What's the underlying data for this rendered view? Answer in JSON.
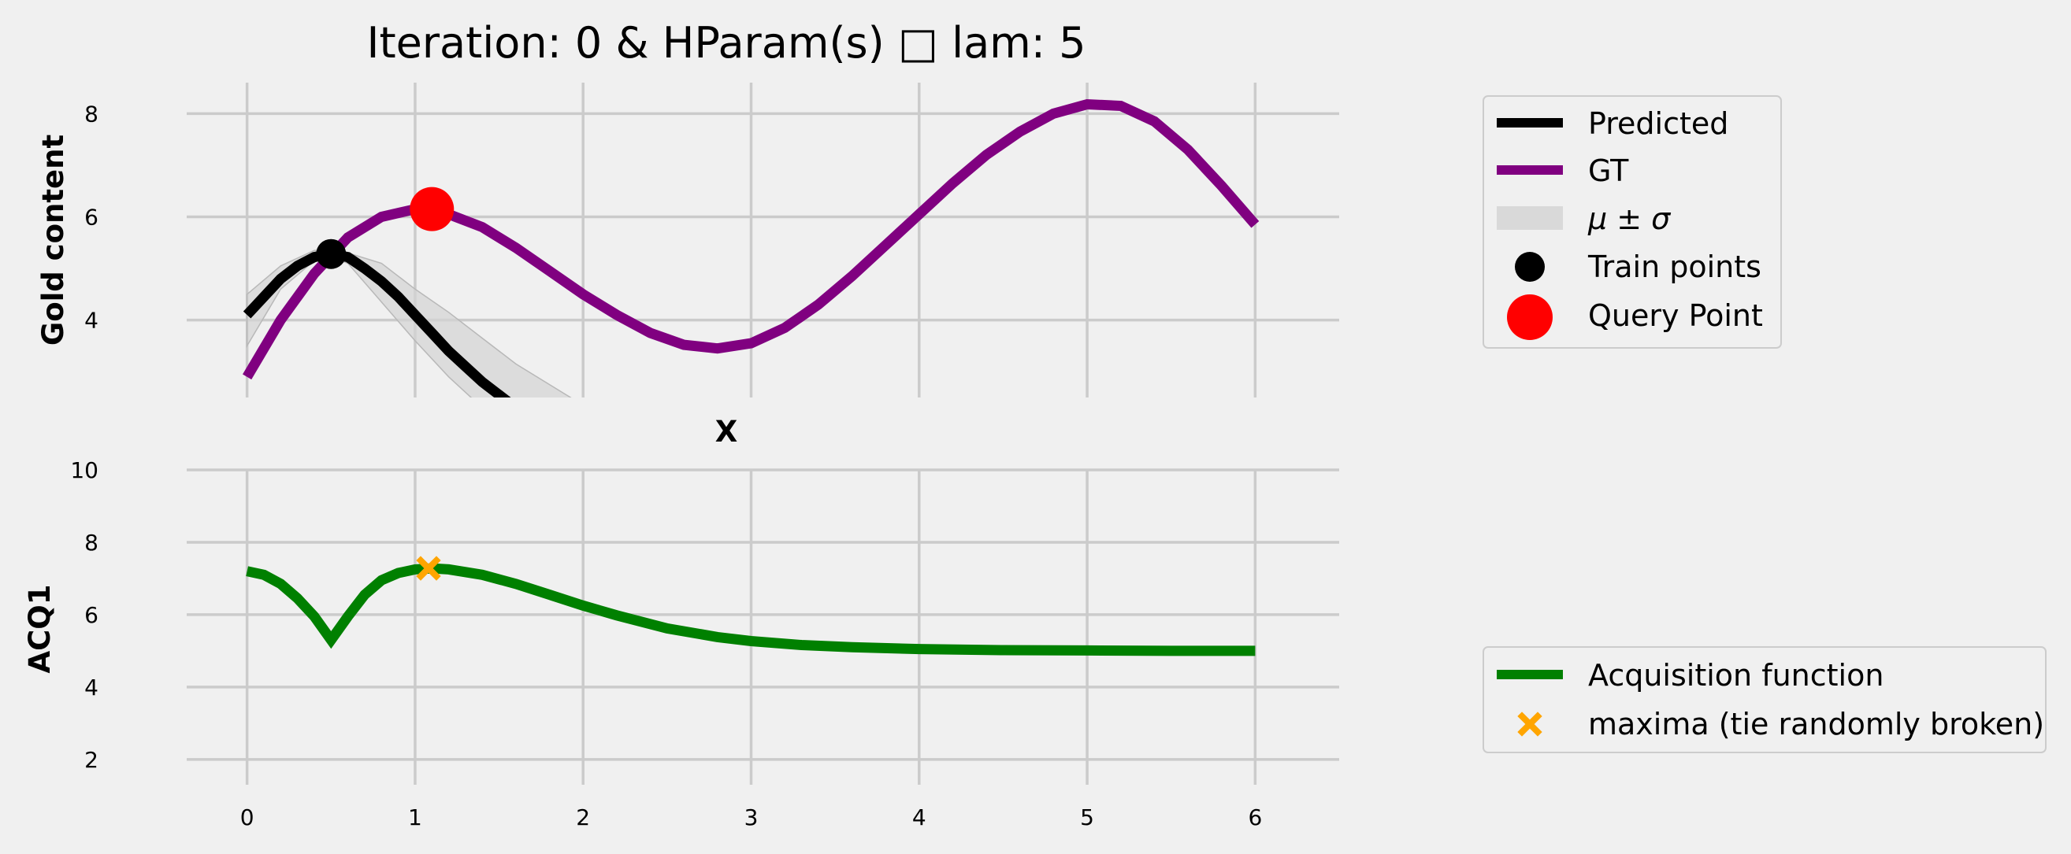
{
  "title": "Iteration: 0 & HParam(s) □ lam: 5",
  "chart_data": [
    {
      "type": "line",
      "ylabel": "Gold content",
      "xlabel": "X",
      "xlim": [
        -0.5,
        6.5
      ],
      "ylim": [
        2.5,
        8.6
      ],
      "xticks": [
        "0",
        "1",
        "2",
        "3",
        "4",
        "5",
        "6"
      ],
      "yticks": [
        "4",
        "6",
        "8"
      ],
      "grid": true,
      "colors": {
        "predicted": "#000000",
        "gt": "#800080",
        "band": "#d3d3d3",
        "train": "#000000",
        "query": "#ff0000"
      },
      "series": [
        {
          "name": "GT",
          "x": [
            0,
            0.2,
            0.4,
            0.6,
            0.8,
            1.0,
            1.2,
            1.4,
            1.6,
            1.8,
            2.0,
            2.2,
            2.4,
            2.6,
            2.8,
            3.0,
            3.2,
            3.4,
            3.6,
            3.8,
            4.0,
            4.2,
            4.4,
            4.6,
            4.8,
            5.0,
            5.2,
            5.4,
            5.6,
            5.8,
            6.0
          ],
          "y": [
            2.9,
            4.0,
            4.9,
            5.6,
            6.0,
            6.15,
            6.05,
            5.8,
            5.4,
            4.95,
            4.5,
            4.1,
            3.75,
            3.52,
            3.45,
            3.55,
            3.85,
            4.3,
            4.85,
            5.45,
            6.05,
            6.65,
            7.2,
            7.65,
            8.0,
            8.18,
            8.15,
            7.85,
            7.3,
            6.6,
            5.85
          ]
        },
        {
          "name": "Predicted",
          "x": [
            0,
            0.1,
            0.2,
            0.3,
            0.4,
            0.5,
            0.6,
            0.7,
            0.8,
            0.9,
            1.0,
            1.1,
            1.2,
            1.3,
            1.4,
            1.5,
            1.6
          ],
          "y": [
            4.1,
            4.45,
            4.8,
            5.05,
            5.22,
            5.28,
            5.22,
            5.0,
            4.75,
            4.45,
            4.1,
            3.75,
            3.4,
            3.1,
            2.8,
            2.55,
            2.3
          ]
        },
        {
          "name": "μ ± σ",
          "x": [
            0,
            0.2,
            0.4,
            0.5,
            0.6,
            0.8,
            1.0,
            1.2,
            1.4,
            1.6,
            1.8,
            2.0
          ],
          "upper": [
            4.5,
            5.05,
            5.35,
            5.36,
            5.3,
            5.1,
            4.6,
            4.15,
            3.65,
            3.15,
            2.75,
            2.35
          ],
          "lower": [
            3.5,
            4.6,
            5.15,
            5.22,
            5.1,
            4.35,
            3.6,
            2.9,
            2.3,
            1.8,
            1.3,
            0.9
          ]
        }
      ],
      "train_points": {
        "name": "Train points",
        "x": [
          0.5
        ],
        "y": [
          5.28
        ]
      },
      "query_point": {
        "name": "Query Point",
        "x": [
          1.1
        ],
        "y": [
          6.15
        ]
      }
    },
    {
      "type": "line",
      "ylabel": "ACQ1",
      "xlim": [
        -0.5,
        6.5
      ],
      "ylim": [
        1.3,
        10.0
      ],
      "xticks": [
        "0",
        "1",
        "2",
        "3",
        "4",
        "5",
        "6"
      ],
      "yticks": [
        "2",
        "4",
        "6",
        "8",
        "10"
      ],
      "grid": true,
      "colors": {
        "acquisition": "#008000",
        "maxima": "#ffa500"
      },
      "series": [
        {
          "name": "Acquisition function",
          "x": [
            0,
            0.1,
            0.2,
            0.3,
            0.4,
            0.5,
            0.6,
            0.7,
            0.8,
            0.9,
            1.0,
            1.1,
            1.2,
            1.4,
            1.6,
            1.8,
            2.0,
            2.2,
            2.5,
            2.8,
            3.0,
            3.3,
            3.6,
            4.0,
            4.5,
            5.0,
            5.5,
            6.0
          ],
          "y": [
            7.2,
            7.1,
            6.85,
            6.45,
            5.95,
            5.3,
            5.95,
            6.55,
            6.95,
            7.15,
            7.25,
            7.28,
            7.25,
            7.1,
            6.85,
            6.55,
            6.25,
            5.98,
            5.62,
            5.38,
            5.27,
            5.16,
            5.1,
            5.05,
            5.02,
            5.01,
            5.0,
            5.0
          ]
        }
      ],
      "maxima": {
        "name": "maxima (tie randomly broken)",
        "x": [
          1.08
        ],
        "y": [
          7.28
        ]
      }
    }
  ]
}
